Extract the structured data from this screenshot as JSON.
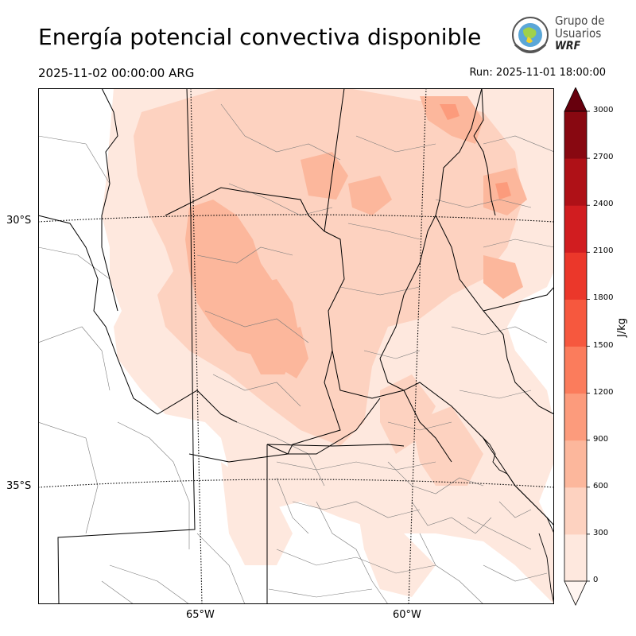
{
  "title": "Energía potencial convectiva disponible",
  "valid_time": "2025-11-02 00:00:00 ARG",
  "run_time": "Run: 2025-11-01 18:00:00",
  "logo": {
    "line1": "Grupo de",
    "line2": "Usuarios",
    "line3": "WRF"
  },
  "map": {
    "lat_labels": [
      "30°S",
      "35°S"
    ],
    "lon_labels": [
      "65°W",
      "60°W"
    ],
    "field": "CAPE",
    "colors": {
      "border": "#000000",
      "districts": "#7a7a7a",
      "graticule": "#000000"
    }
  },
  "colorbar": {
    "unit": "J/kg",
    "ticks": [
      "0",
      "300",
      "600",
      "900",
      "1200",
      "1500",
      "1800",
      "2100",
      "2400",
      "2700",
      "3000"
    ],
    "colors": [
      "#fee8de",
      "#fdd2c0",
      "#fcb79c",
      "#fc9b7c",
      "#fb7c5c",
      "#f6583e",
      "#eb372a",
      "#d11d20",
      "#af1117",
      "#880811"
    ],
    "over_color": "#67000d",
    "under_color": "#fff5f0"
  }
}
